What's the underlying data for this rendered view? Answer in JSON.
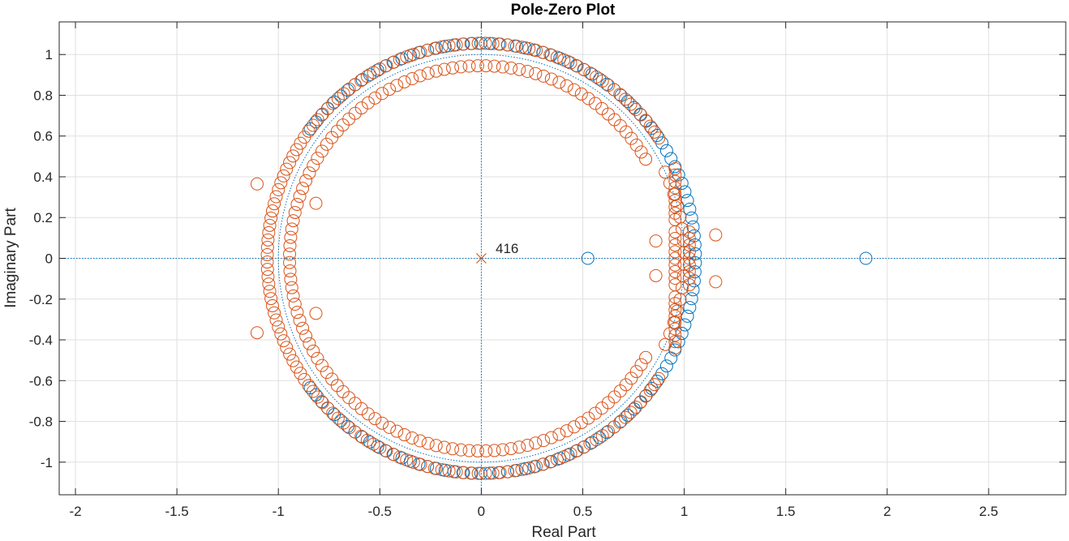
{
  "chart_data": {
    "type": "scatter",
    "title": "Pole-Zero Plot",
    "xlabel": "Real Part",
    "ylabel": "Imaginary Part",
    "xlim": [
      -2.08,
      2.88
    ],
    "ylim": [
      -1.16,
      1.16
    ],
    "x_ticks": [
      -2,
      -1.5,
      -1,
      -0.5,
      0,
      0.5,
      1,
      1.5,
      2,
      2.5
    ],
    "x_tick_labels": [
      "-2",
      "-1.5",
      "-1",
      "-0.5",
      "0",
      "0.5",
      "1",
      "1.5",
      "2",
      "2.5"
    ],
    "y_ticks": [
      1,
      0.8,
      0.6,
      0.4,
      0.2,
      0,
      -0.2,
      -0.4,
      -0.6,
      -0.8,
      -1
    ],
    "y_tick_labels": [
      "1",
      "0.8",
      "0.6",
      "0.4",
      "0.2",
      "0",
      "-0.2",
      "-0.4",
      "-0.6",
      "-0.8",
      "-1"
    ],
    "grid": true,
    "colors": {
      "zeros_blue": "#0072bd",
      "zeros_orange": "#d95319",
      "grid": "#dfdfdf",
      "axes": "#262626"
    },
    "annotation": {
      "text": "416",
      "x": 0,
      "y": 0
    },
    "series": [
      {
        "marker": "o",
        "color": "#0072bd",
        "points": [
          [
            0.525,
            0
          ],
          [
            1.895,
            0
          ]
        ],
        "arcs": [
          {
            "r": 1.055,
            "theta_start_deg": -143,
            "theta_end_deg": 143,
            "count": 120
          }
        ]
      },
      {
        "marker": "o",
        "color": "#d95319",
        "points": [
          [
            -1.105,
            0.365
          ],
          [
            -1.105,
            -0.365
          ],
          [
            -0.815,
            0.27
          ],
          [
            -0.815,
            -0.27
          ],
          [
            0.86,
            0.085
          ],
          [
            0.86,
            -0.085
          ],
          [
            1.155,
            0.115
          ],
          [
            1.155,
            -0.115
          ]
        ],
        "arcs": [
          {
            "r": 1.055,
            "theta_start_deg": 34,
            "theta_end_deg": 326,
            "count": 150
          },
          {
            "r": 0.945,
            "theta_start_deg": 31,
            "theta_end_deg": 329,
            "count": 120
          },
          {
            "r": 1.0,
            "theta_start_deg": -25,
            "theta_end_deg": 25,
            "count": 16
          }
        ],
        "vertical_groups": [
          {
            "x": 0.955,
            "y_start": 0.19,
            "y_end": 0.44,
            "count": 9
          },
          {
            "x": 0.955,
            "y_start": -0.44,
            "y_end": -0.19,
            "count": 9
          },
          {
            "x": 1.025,
            "y_start": -0.13,
            "y_end": 0.13,
            "count": 9
          },
          {
            "x": 0.955,
            "y_start": -0.13,
            "y_end": 0.13,
            "count": 9
          }
        ]
      },
      {
        "marker": "x",
        "color": "#d95319",
        "points": [
          [
            0,
            0
          ]
        ]
      }
    ]
  }
}
